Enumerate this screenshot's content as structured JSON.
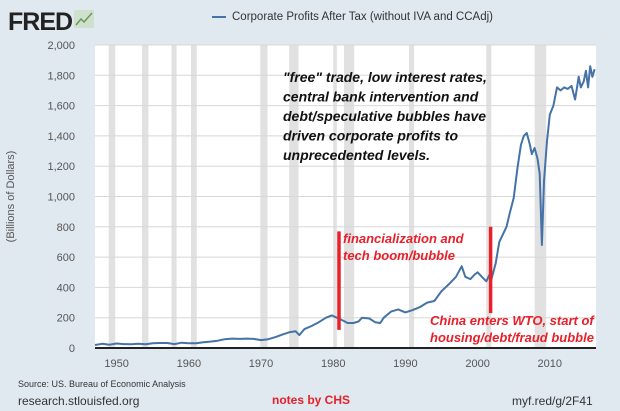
{
  "logo": "FRED",
  "chart_data": {
    "type": "line",
    "title": "",
    "legend": [
      "Corporate Profits After Tax (without IVA and CCAdj)"
    ],
    "legend_placement": "top-center",
    "xlabel": "",
    "ylabel": "(Billions of Dollars)",
    "xlim": [
      1947,
      2016.4
    ],
    "ylim": [
      0,
      2000
    ],
    "xticks": [
      1950,
      1960,
      1970,
      1980,
      1990,
      2000,
      2010
    ],
    "yticks": [
      0,
      200,
      400,
      600,
      800,
      1000,
      1200,
      1400,
      1600,
      1800,
      2000
    ],
    "ytick_labels": [
      "0",
      "200",
      "400",
      "600",
      "800",
      "1,000",
      "1,200",
      "1,400",
      "1,600",
      "1,800",
      "2,000"
    ],
    "grid": true,
    "series": [
      {
        "name": "Corporate Profits After Tax (without IVA and CCAdj)",
        "color": "#4572a7",
        "x": [
          1947,
          1948,
          1949,
          1950,
          1951,
          1952,
          1953,
          1954,
          1955,
          1956,
          1957,
          1958,
          1959,
          1960,
          1961,
          1962,
          1963,
          1964,
          1965,
          1966,
          1967,
          1968,
          1969,
          1970,
          1971,
          1972,
          1973,
          1974,
          1974.8,
          1975.3,
          1976,
          1977,
          1978,
          1979,
          1979.8,
          1980.5,
          1981,
          1982,
          1982.8,
          1983.5,
          1984,
          1985,
          1985.8,
          1986.5,
          1987,
          1988,
          1989,
          1990,
          1991,
          1992,
          1993,
          1994,
          1995,
          1996,
          1997,
          1997.8,
          1998.3,
          1999,
          1999.6,
          2000,
          2000.6,
          2001.2,
          2001.6,
          2001.9,
          2002.5,
          2003,
          2003.6,
          2004,
          2004.5,
          2005,
          2005.5,
          2006,
          2006.4,
          2006.8,
          2007.2,
          2007.5,
          2007.9,
          2008.3,
          2008.6,
          2008.9,
          2009.2,
          2009.6,
          2010,
          2010.5,
          2011,
          2011.5,
          2012,
          2012.5,
          2013,
          2013.5,
          2014,
          2014.3,
          2014.7,
          2015,
          2015.3,
          2015.6,
          2015.9,
          2016.2
        ],
        "values": [
          20,
          28,
          22,
          30,
          26,
          25,
          28,
          25,
          32,
          33,
          33,
          26,
          35,
          32,
          32,
          38,
          42,
          48,
          58,
          62,
          60,
          62,
          60,
          52,
          58,
          72,
          90,
          105,
          110,
          85,
          125,
          145,
          170,
          200,
          215,
          200,
          190,
          165,
          165,
          175,
          200,
          195,
          170,
          165,
          200,
          240,
          255,
          235,
          250,
          270,
          300,
          310,
          375,
          420,
          470,
          540,
          470,
          455,
          485,
          500,
          470,
          440,
          480,
          450,
          560,
          700,
          760,
          800,
          900,
          990,
          1180,
          1340,
          1400,
          1420,
          1350,
          1280,
          1320,
          1250,
          1150,
          680,
          1100,
          1360,
          1540,
          1600,
          1720,
          1700,
          1720,
          1710,
          1730,
          1640,
          1790,
          1720,
          1760,
          1830,
          1720,
          1860,
          1790,
          1840
        ],
        "recessions": [
          [
            1948.9,
            1949.8
          ],
          [
            1953.5,
            1954.4
          ],
          [
            1957.6,
            1958.3
          ],
          [
            1960.3,
            1961.1
          ],
          [
            1969.9,
            1970.9
          ],
          [
            1973.9,
            1975.2
          ],
          [
            1980.0,
            1980.5
          ],
          [
            1981.5,
            1982.9
          ],
          [
            1990.5,
            1991.2
          ],
          [
            2001.2,
            2001.9
          ],
          [
            2007.9,
            2009.5
          ]
        ]
      }
    ],
    "annotations": [
      {
        "id": "main",
        "text": [
          "\"free\" trade, low interest rates,",
          "central bank intervention and",
          "debt/speculative bubbles have",
          "driven corporate profits to",
          "unprecedented levels."
        ],
        "color": "#111111"
      },
      {
        "id": "fin",
        "text": [
          "financialization and",
          "tech boom/bubble"
        ],
        "color": "#e8202a",
        "marker_x": 1980.8,
        "marker_y": [
          120,
          770
        ]
      },
      {
        "id": "china",
        "text": [
          "China enters WTO, start of",
          "housing/debt/fraud bubble"
        ],
        "color": "#e8202a",
        "marker_x": 2001.8,
        "marker_y": [
          230,
          800
        ]
      }
    ]
  },
  "footer": {
    "source": "Source: US. Bureau of Economic Analysis",
    "site": "research.stlouisfed.org",
    "notes": "notes by CHS",
    "short_url": "myf.red/g/2F41"
  }
}
